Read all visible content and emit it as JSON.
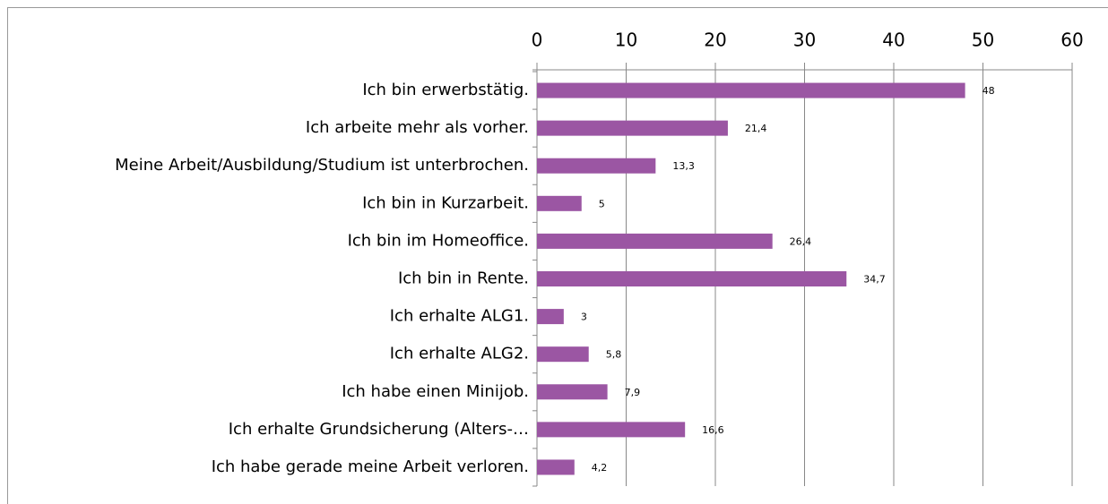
{
  "chart_data": {
    "type": "bar",
    "orientation": "horizontal",
    "categories": [
      "Ich bin erwerbstätig.",
      "Ich arbeite mehr als vorher.",
      "Meine Arbeit/Ausbildung/Studium ist unterbrochen.",
      "Ich bin in Kurzarbeit.",
      "Ich bin im Homeoffice.",
      "Ich bin in Rente.",
      "Ich erhalte ALG1.",
      "Ich erhalte ALG2.",
      "Ich habe einen Minijob.",
      "Ich erhalte Grundsicherung (Alters-…",
      "Ich habe gerade meine Arbeit verloren."
    ],
    "values": [
      48,
      21.4,
      13.3,
      5,
      26.4,
      34.7,
      3,
      5.8,
      7.9,
      16.6,
      4.2
    ],
    "value_labels": [
      "48",
      "21,4",
      "13,3",
      "5",
      "26,4",
      "34,7",
      "3",
      "5,8",
      "7,9",
      "16,6",
      "4,2"
    ],
    "color": "#9b56a3",
    "xlim": [
      0,
      60
    ],
    "xticks": [
      0,
      10,
      20,
      30,
      40,
      50,
      60
    ],
    "grid": true
  }
}
